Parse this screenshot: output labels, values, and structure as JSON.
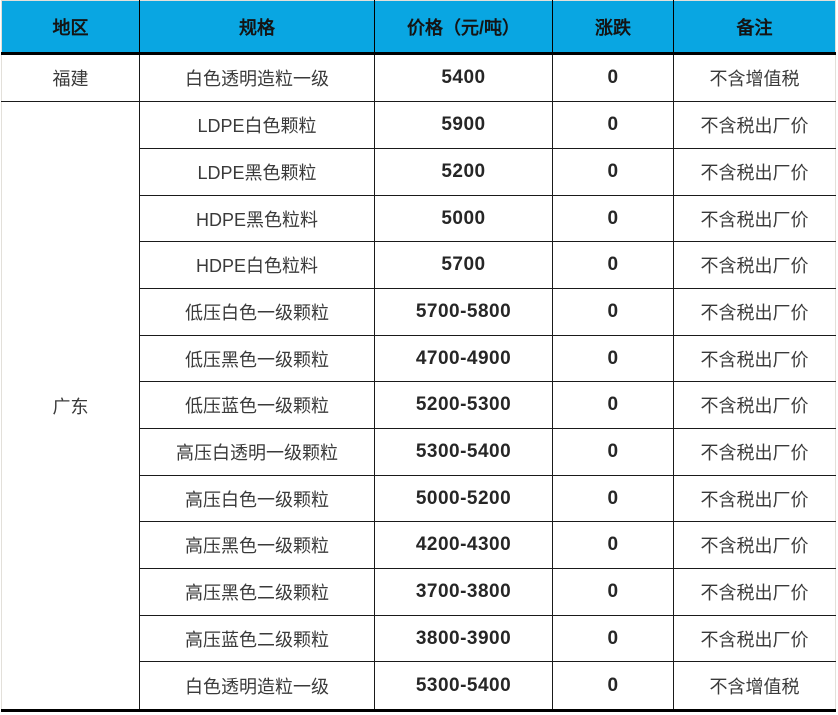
{
  "colors": {
    "header_bg": "#09A6E2",
    "grid_line": "#000000",
    "outer_edge": "#E3E0DA",
    "header_text": "#141414",
    "body_text": "#3A3A3A"
  },
  "chart_data": {
    "type": "table",
    "columns": [
      "地区",
      "规格",
      "价格（元/吨）",
      "涨跌",
      "备注"
    ],
    "region_groups": [
      {
        "region": "福建",
        "rows": [
          [
            "白色透明造粒一级",
            "5400",
            "0",
            "不含增值税"
          ]
        ]
      },
      {
        "region": "广东",
        "rows": [
          [
            "LDPE白色颗粒",
            "5900",
            "0",
            "不含税出厂价"
          ],
          [
            "LDPE黑色颗粒",
            "5200",
            "0",
            "不含税出厂价"
          ],
          [
            "HDPE黑色粒料",
            "5000",
            "0",
            "不含税出厂价"
          ],
          [
            "HDPE白色粒料",
            "5700",
            "0",
            "不含税出厂价"
          ],
          [
            "低压白色一级颗粒",
            "5700-5800",
            "0",
            "不含税出厂价"
          ],
          [
            "低压黑色一级颗粒",
            "4700-4900",
            "0",
            "不含税出厂价"
          ],
          [
            "低压蓝色一级颗粒",
            "5200-5300",
            "0",
            "不含税出厂价"
          ],
          [
            "高压白透明一级颗粒",
            "5300-5400",
            "0",
            "不含税出厂价"
          ],
          [
            "高压白色一级颗粒",
            "5000-5200",
            "0",
            "不含税出厂价"
          ],
          [
            "高压黑色一级颗粒",
            "4200-4300",
            "0",
            "不含税出厂价"
          ],
          [
            "高压黑色二级颗粒",
            "3700-3800",
            "0",
            "不含税出厂价"
          ],
          [
            "高压蓝色二级颗粒",
            "3800-3900",
            "0",
            "不含税出厂价"
          ],
          [
            "白色透明造粒一级",
            "5300-5400",
            "0",
            "不含增值税"
          ]
        ]
      }
    ]
  }
}
